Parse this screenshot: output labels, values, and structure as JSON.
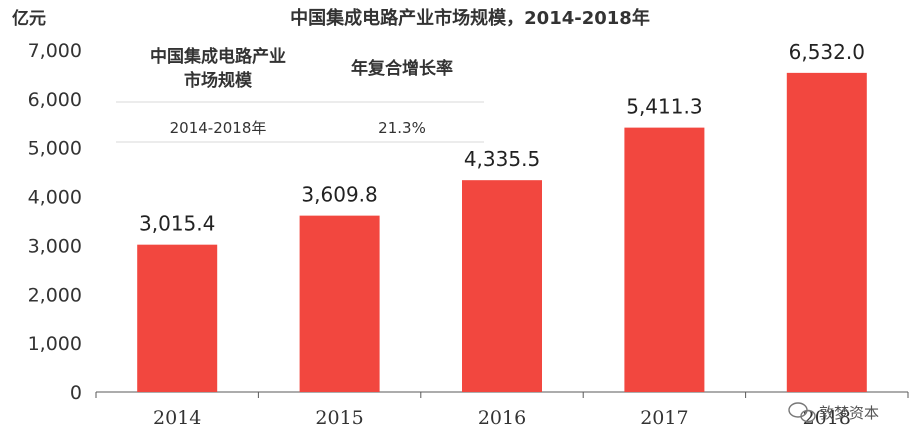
{
  "chart_data": {
    "type": "bar",
    "title": "中国集成电路产业市场规模，2014-2018年",
    "unit_label": "亿元",
    "categories": [
      "2014",
      "2015",
      "2016",
      "2017",
      "2018"
    ],
    "values": [
      3015.4,
      3609.8,
      4335.5,
      5411.3,
      6532.0
    ],
    "value_labels": [
      "3,015.4",
      "3,609.8",
      "4,335.5",
      "5,411.3",
      "6,532.0"
    ],
    "ylim": [
      0,
      7000
    ],
    "yticks": [
      "0",
      "1,000",
      "2,000",
      "3,000",
      "4,000",
      "5,000",
      "6,000",
      "7,000"
    ],
    "grid": false,
    "bar_color": "#F2473F"
  },
  "inset_table": {
    "header_col1_line1": "中国集成电路产业",
    "header_col1_line2": "市场规模",
    "header_col2": "年复合增长率",
    "row_col1": "2014-2018年",
    "row_col2": "21.3%"
  },
  "watermark": "敦梦资本"
}
